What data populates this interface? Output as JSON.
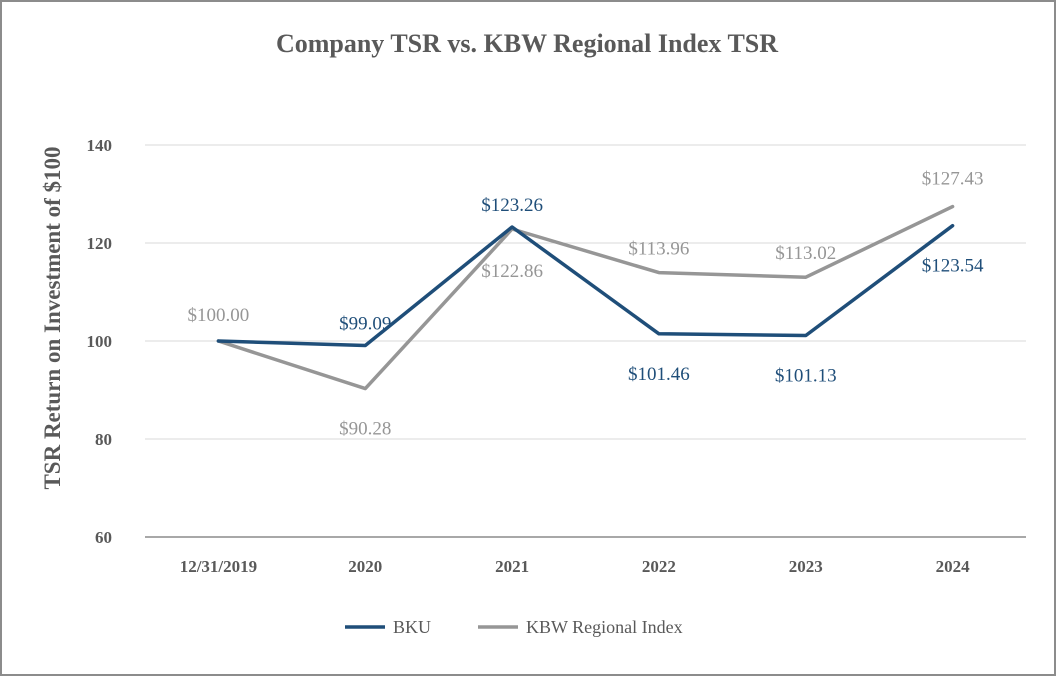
{
  "chart_data": {
    "type": "line",
    "title": "Company TSR vs. KBW Regional Index TSR",
    "xlabel": "",
    "ylabel": "TSR Return on Investment of $100",
    "categories": [
      "12/31/2019",
      "2020",
      "2021",
      "2022",
      "2023",
      "2024"
    ],
    "ylim": [
      60,
      140
    ],
    "yticks": [
      60,
      80,
      100,
      120,
      140
    ],
    "grid": true,
    "legend_position": "bottom",
    "series": [
      {
        "name": "BKU",
        "color": "#1f4e79",
        "values": [
          100.0,
          99.09,
          123.26,
          101.46,
          101.13,
          123.54
        ],
        "labels": [
          "",
          "$99.09",
          "$123.26",
          "$101.46",
          "$101.13",
          "$123.54"
        ]
      },
      {
        "name": "KBW Regional Index",
        "color": "#969696",
        "values": [
          100.0,
          90.28,
          122.86,
          113.96,
          113.02,
          127.43
        ],
        "labels": [
          "$100.00",
          "$90.28",
          "$122.86",
          "$113.96",
          "$113.02",
          "$127.43"
        ]
      }
    ]
  }
}
